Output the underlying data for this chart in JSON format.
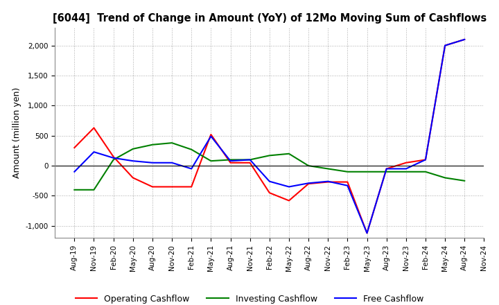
{
  "title": "[6044]  Trend of Change in Amount (YoY) of 12Mo Moving Sum of Cashflows",
  "ylabel": "Amount (million yen)",
  "ylim": [
    -1200,
    2300
  ],
  "yticks": [
    -1000,
    -500,
    0,
    500,
    1000,
    1500,
    2000
  ],
  "background_color": "#ffffff",
  "grid_color": "#aaaaaa",
  "labels": [
    "Aug-19",
    "Nov-19",
    "Feb-20",
    "May-20",
    "Aug-20",
    "Nov-20",
    "Feb-21",
    "May-21",
    "Aug-21",
    "Nov-21",
    "Feb-22",
    "May-22",
    "Aug-22",
    "Nov-22",
    "Feb-23",
    "May-23",
    "Aug-23",
    "Nov-23",
    "Feb-24",
    "May-24",
    "Aug-24",
    "Nov-24"
  ],
  "operating": [
    300,
    630,
    150,
    -200,
    -350,
    -350,
    -350,
    520,
    50,
    50,
    -450,
    -580,
    -300,
    -270,
    -270,
    -1120,
    -50,
    50,
    100,
    2000,
    2100,
    null
  ],
  "investing": [
    -400,
    -400,
    100,
    280,
    350,
    380,
    270,
    80,
    100,
    100,
    170,
    200,
    0,
    -50,
    -100,
    -100,
    -100,
    -100,
    -100,
    -200,
    -250,
    null
  ],
  "free": [
    -100,
    230,
    130,
    80,
    50,
    50,
    -50,
    490,
    80,
    100,
    -260,
    -350,
    -290,
    -260,
    -330,
    -1120,
    -50,
    -50,
    100,
    2000,
    2100,
    null
  ],
  "op_color": "#ff0000",
  "inv_color": "#008000",
  "free_color": "#0000ff",
  "line_width": 1.5
}
